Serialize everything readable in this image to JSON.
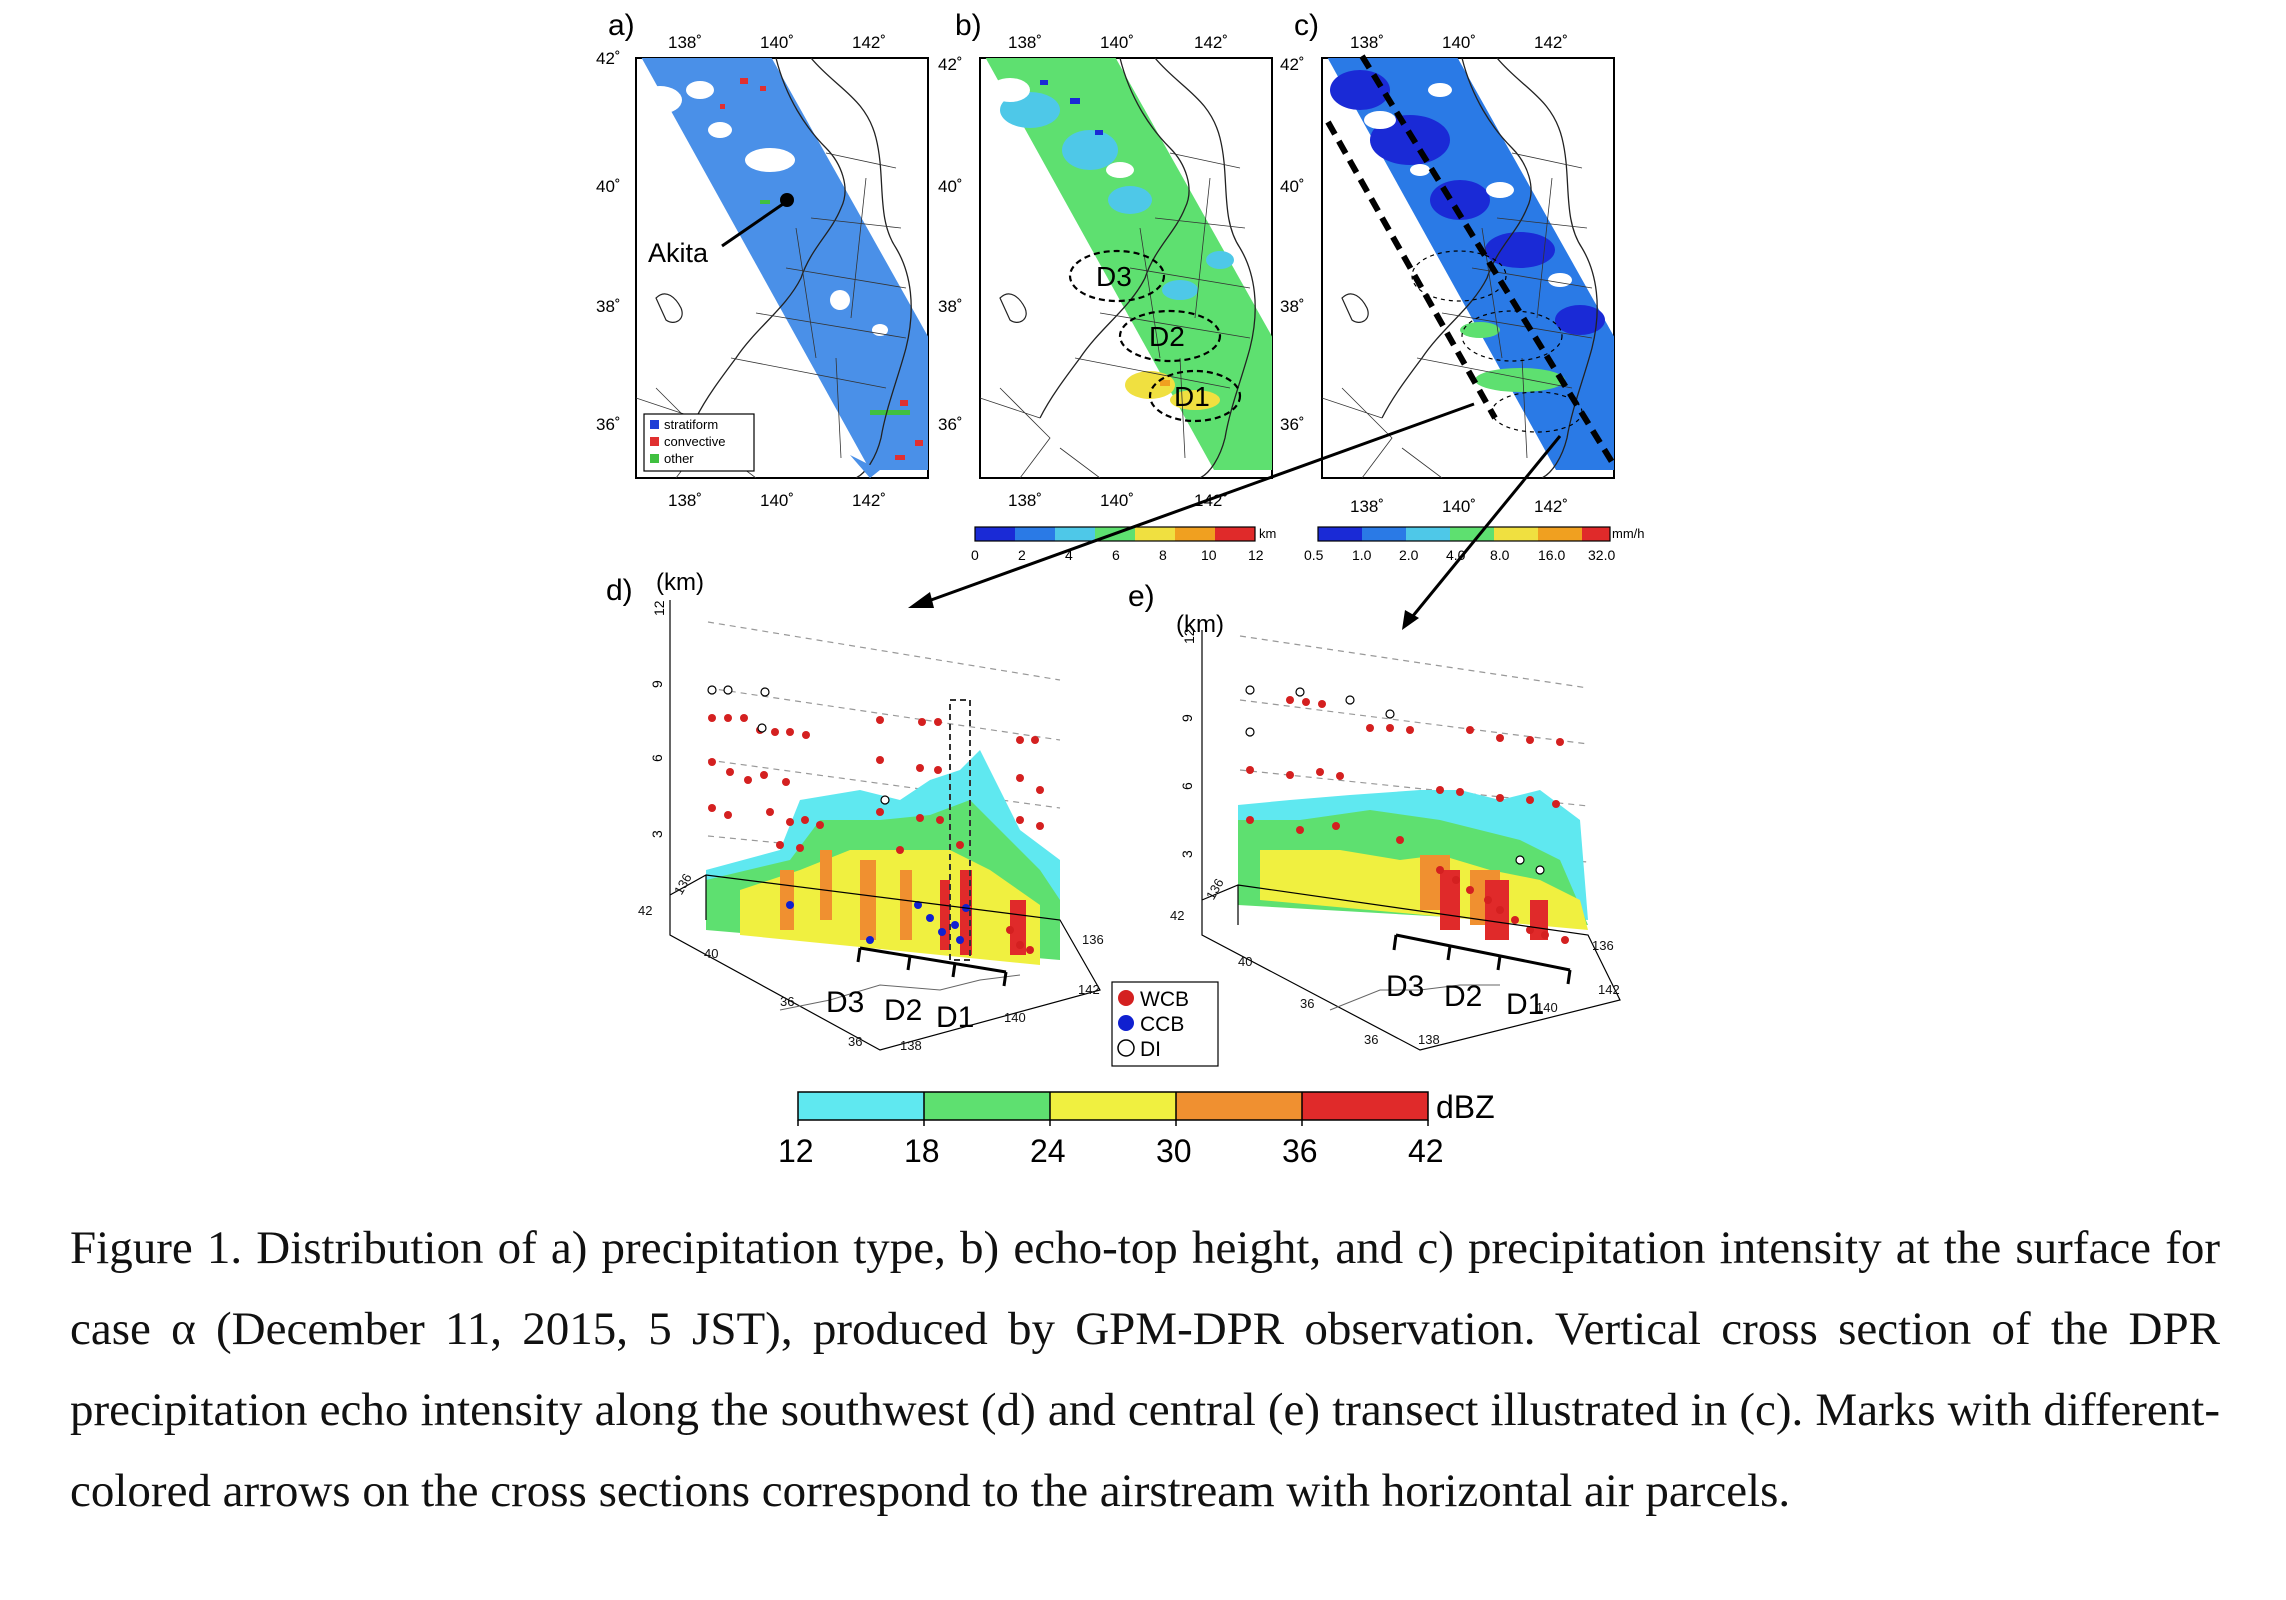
{
  "panels": {
    "a": {
      "letter": "a)",
      "city": "Akita",
      "legend": [
        {
          "label": "stratiform",
          "color": "#1f3fd6"
        },
        {
          "label": "convective",
          "color": "#e03030"
        },
        {
          "label": "other",
          "color": "#40c040"
        }
      ]
    },
    "b": {
      "letter": "b)",
      "regions": [
        "D3",
        "D2",
        "D1"
      ]
    },
    "c": {
      "letter": "c)"
    },
    "d": {
      "letter": "d)",
      "unit": "(km)",
      "regions": [
        "D3",
        "D2",
        "D1"
      ]
    },
    "e": {
      "letter": "e)",
      "unit": "(km)",
      "regions": [
        "D3",
        "D2",
        "D1"
      ]
    }
  },
  "lon_ticks": [
    "138˚",
    "140˚",
    "142˚"
  ],
  "lat_ticks": [
    "42˚",
    "40˚",
    "38˚",
    "36˚"
  ],
  "height_ticks": [
    "12",
    "9",
    "6",
    "3"
  ],
  "box_lat_ticks": [
    "42",
    "40",
    "38",
    "36"
  ],
  "box_lon_ticks": [
    "136",
    "138",
    "140",
    "142"
  ],
  "box_front_lon": "136",
  "colorbar_b": {
    "unit": "km",
    "ticks": [
      "0",
      "2",
      "4",
      "6",
      "8",
      "10",
      "12"
    ],
    "colors": [
      "#1a2ad6",
      "#2a7ae6",
      "#4ec8e8",
      "#5ee070",
      "#f0e040",
      "#f0a020",
      "#e02a2a"
    ]
  },
  "colorbar_c": {
    "unit": "mm/h",
    "ticks": [
      "0.5",
      "1.0",
      "2.0",
      "4.0",
      "8.0",
      "16.0",
      "32.0"
    ],
    "colors": [
      "#1a2ad6",
      "#2a7ae6",
      "#4ec8e8",
      "#5ee070",
      "#f0e040",
      "#f0a020",
      "#e02a2a"
    ]
  },
  "airstream_legend": [
    {
      "label": "WCB",
      "color": "#d42020"
    },
    {
      "label": "CCB",
      "color": "#1020d0"
    },
    {
      "label": "DI",
      "color": "#ffffff"
    }
  ],
  "dbz_bar": {
    "unit": "dBZ",
    "ticks": [
      "12",
      "18",
      "24",
      "30",
      "36",
      "42"
    ],
    "colors": [
      "#5fe8f0",
      "#5ee070",
      "#f0f040",
      "#f09030",
      "#e02a2a"
    ]
  },
  "caption": "Figure 1. Distribution of a) precipitation type, b) echo-top height, and c) precipitation intensity at the surface for case α (December 11, 2015, 5 JST), produced by GPM-DPR observation. Vertical cross section of the DPR precipitation echo intensity along the southwest (d) and central (e) transect illustrated in (c). Marks with different-colored arrows on the cross sections correspond to the airstream with horizontal air parcels."
}
